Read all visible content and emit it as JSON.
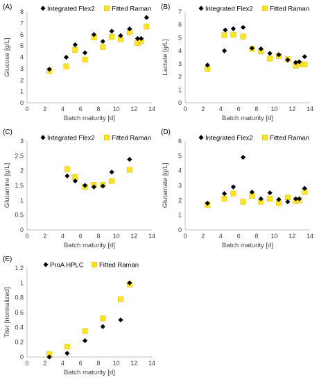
{
  "colors": {
    "diamond": "#000000",
    "square": "#fde428",
    "square_edge": "#d4b800",
    "axis": "#bfbfbf",
    "text": "#404040"
  },
  "chart_data": [
    {
      "panel": "(A)",
      "type": "scatter",
      "xlabel": "Batch maturity [d]",
      "ylabel": "Glucose [g/L]",
      "xlim": [
        0,
        14
      ],
      "ylim": [
        0,
        8
      ],
      "xticks": [
        "0",
        "2",
        "4",
        "6",
        "8",
        "10",
        "12",
        "14"
      ],
      "yticks": [
        "0",
        "1",
        "2",
        "3",
        "4",
        "5",
        "6",
        "7",
        "8"
      ],
      "legend_position": "top",
      "series": [
        {
          "name": "Integrated Flex2",
          "marker": "diamond",
          "x": [
            2.5,
            4.4,
            5.4,
            6.5,
            7.5,
            8.5,
            9.5,
            10.5,
            11.5,
            12.4,
            12.8,
            13.4
          ],
          "y": [
            2.95,
            4.0,
            5.1,
            4.4,
            6.0,
            5.4,
            6.3,
            5.9,
            6.5,
            5.65,
            5.65,
            7.5
          ]
        },
        {
          "name": "Fitted Raman",
          "marker": "square",
          "x": [
            2.5,
            4.4,
            5.4,
            6.5,
            7.5,
            8.5,
            9.5,
            10.5,
            11.5,
            12.4,
            12.8,
            13.4
          ],
          "y": [
            2.8,
            3.2,
            4.65,
            3.8,
            5.75,
            4.9,
            5.8,
            5.6,
            6.2,
            5.25,
            5.45,
            6.7
          ]
        }
      ]
    },
    {
      "panel": "(B)",
      "type": "scatter",
      "xlabel": "Batch maturity [d]",
      "ylabel": "Lactate [g/L]",
      "xlim": [
        0,
        14
      ],
      "ylim": [
        0,
        7
      ],
      "xticks": [
        "0",
        "2",
        "4",
        "6",
        "8",
        "10",
        "12",
        "14"
      ],
      "yticks": [
        "0",
        "1",
        "2",
        "3",
        "4",
        "5",
        "6",
        "7"
      ],
      "legend_position": "top",
      "series": [
        {
          "name": "Integrated Flex2",
          "marker": "diamond",
          "x": [
            2.5,
            4.4,
            4.5,
            5.4,
            6.5,
            7.5,
            8.5,
            9.5,
            10.5,
            11.5,
            12.4,
            12.8,
            13.4
          ],
          "y": [
            2.9,
            4.0,
            5.6,
            5.7,
            5.8,
            4.2,
            4.15,
            3.8,
            3.7,
            3.3,
            3.1,
            3.15,
            3.55
          ]
        },
        {
          "name": "Fitted Raman",
          "marker": "square",
          "x": [
            2.5,
            4.4,
            5.4,
            6.5,
            7.5,
            8.5,
            9.5,
            10.5,
            11.5,
            12.4,
            12.8,
            13.4
          ],
          "y": [
            2.6,
            5.2,
            5.25,
            5.1,
            4.15,
            3.95,
            3.4,
            3.6,
            3.35,
            2.85,
            3.0,
            2.95
          ]
        }
      ]
    },
    {
      "panel": "(C)",
      "type": "scatter",
      "xlabel": "Batch maturity [d]",
      "ylabel": "Glutamine [g/L]",
      "xlim": [
        0,
        14
      ],
      "ylim": [
        0,
        3
      ],
      "xticks": [
        "0",
        "2",
        "4",
        "6",
        "8",
        "10",
        "12",
        "14"
      ],
      "yticks": [
        "0",
        "0.5",
        "1",
        "1.5",
        "2",
        "2.5",
        "3"
      ],
      "legend_position": "top",
      "series": [
        {
          "name": "Integrated Flex2",
          "marker": "diamond",
          "x": [
            4.5,
            5.4,
            6.5,
            7.5,
            8.5,
            9.5,
            11.5
          ],
          "y": [
            1.82,
            1.65,
            1.5,
            1.45,
            1.48,
            1.95,
            2.38
          ]
        },
        {
          "name": "Fitted Raman",
          "marker": "square",
          "x": [
            4.5,
            5.4,
            6.5,
            7.5,
            8.5,
            9.5,
            11.5
          ],
          "y": [
            2.05,
            1.78,
            1.45,
            1.52,
            1.52,
            1.65,
            2.03
          ]
        }
      ]
    },
    {
      "panel": "(D)",
      "type": "scatter",
      "xlabel": "Batch maturity [d]",
      "ylabel": "Glutamate [g/L]",
      "xlim": [
        0,
        14
      ],
      "ylim": [
        0,
        6
      ],
      "xticks": [
        "0",
        "2",
        "4",
        "6",
        "8",
        "10",
        "12",
        "14"
      ],
      "yticks": [
        "0",
        "1",
        "2",
        "3",
        "4",
        "5",
        "6"
      ],
      "legend_position": "top",
      "series": [
        {
          "name": "Integrated Flex2",
          "marker": "diamond",
          "x": [
            2.5,
            4.4,
            5.4,
            6.5,
            7.5,
            8.5,
            9.5,
            10.5,
            11.5,
            12.4,
            12.8,
            13.4
          ],
          "y": [
            1.8,
            2.45,
            2.9,
            4.9,
            2.55,
            2.1,
            2.5,
            2.05,
            1.9,
            2.1,
            2.1,
            2.8
          ]
        },
        {
          "name": "Fitted Raman",
          "marker": "square",
          "x": [
            2.5,
            4.4,
            5.4,
            6.5,
            7.5,
            8.5,
            9.5,
            10.5,
            11.5,
            12.4,
            12.8,
            13.4
          ],
          "y": [
            1.7,
            2.1,
            2.45,
            1.9,
            2.3,
            1.9,
            2.1,
            1.8,
            2.2,
            1.95,
            2.0,
            2.55
          ]
        }
      ]
    },
    {
      "panel": "(E)",
      "type": "scatter",
      "xlabel": "Batch maturity [d]",
      "ylabel": "Titer [normalized]",
      "xlim": [
        0,
        14
      ],
      "ylim": [
        0,
        1.2
      ],
      "xticks": [
        "0",
        "2",
        "4",
        "6",
        "8",
        "10",
        "12",
        "14"
      ],
      "yticks": [
        "0",
        "0.2",
        "0.4",
        "0.6",
        "0.8",
        "1",
        "1.2"
      ],
      "legend_position": "top",
      "series": [
        {
          "name": "ProA HPLC",
          "marker": "diamond",
          "x": [
            2.5,
            4.5,
            6.5,
            8.5,
            10.5,
            11.5
          ],
          "y": [
            0.0,
            0.05,
            0.22,
            0.41,
            0.5,
            1.0
          ]
        },
        {
          "name": "Fitted Raman",
          "marker": "square",
          "x": [
            2.5,
            4.5,
            6.5,
            8.5,
            10.5,
            11.5
          ],
          "y": [
            0.04,
            0.14,
            0.35,
            0.52,
            0.78,
            0.98
          ]
        }
      ]
    }
  ]
}
